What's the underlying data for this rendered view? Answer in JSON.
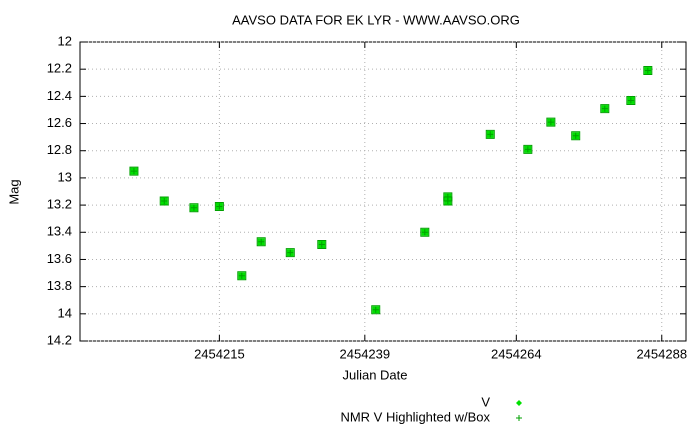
{
  "chart_data": {
    "type": "scatter",
    "title": "AAVSO DATA FOR EK LYR - WWW.AAVSO.ORG",
    "x_label": "Julian Date",
    "y_label": "Mag",
    "xlim": [
      2454192,
      2454292
    ],
    "xticks": [
      2454215,
      2454239,
      2454264,
      2454288
    ],
    "ylim": [
      14.2,
      12
    ],
    "yticks": [
      12,
      12.2,
      12.4,
      12.6,
      12.8,
      13,
      13.2,
      13.4,
      13.6,
      13.8,
      14,
      14.2
    ],
    "grid": true,
    "y_inverted": true,
    "legend": "bottom",
    "series": [
      {
        "name": "V",
        "color": "#00e000",
        "x": [
          2454200.9,
          2454205.9,
          2454210.8,
          2454215,
          2454218.7,
          2454221.9,
          2454226.7,
          2454231.9,
          2454240.8,
          2454248.9,
          2454252.7,
          2454252.7,
          2454259.7,
          2454265.9,
          2454269.7,
          2454273.8,
          2454278.6,
          2454282.9,
          2454285.7
        ],
        "values": [
          12.95,
          13.17,
          13.22,
          13.21,
          13.72,
          13.47,
          13.55,
          13.49,
          13.97,
          13.4,
          13.14,
          13.17,
          12.68,
          12.79,
          12.59,
          12.69,
          12.49,
          12.43,
          12.21
        ]
      },
      {
        "name": "NMR V Highlighted w/Box",
        "color": "#00a000",
        "x": [
          2454200.9,
          2454205.9,
          2454210.8,
          2454215,
          2454218.7,
          2454221.9,
          2454226.7,
          2454231.9,
          2454240.8,
          2454248.9,
          2454252.7,
          2454252.7,
          2454259.7,
          2454265.9,
          2454269.7,
          2454273.8,
          2454278.6,
          2454282.9,
          2454285.7
        ],
        "values": [
          12.95,
          13.17,
          13.22,
          13.21,
          13.72,
          13.47,
          13.55,
          13.49,
          13.97,
          13.4,
          13.14,
          13.17,
          12.68,
          12.79,
          12.59,
          12.69,
          12.49,
          12.43,
          12.21
        ]
      }
    ]
  }
}
